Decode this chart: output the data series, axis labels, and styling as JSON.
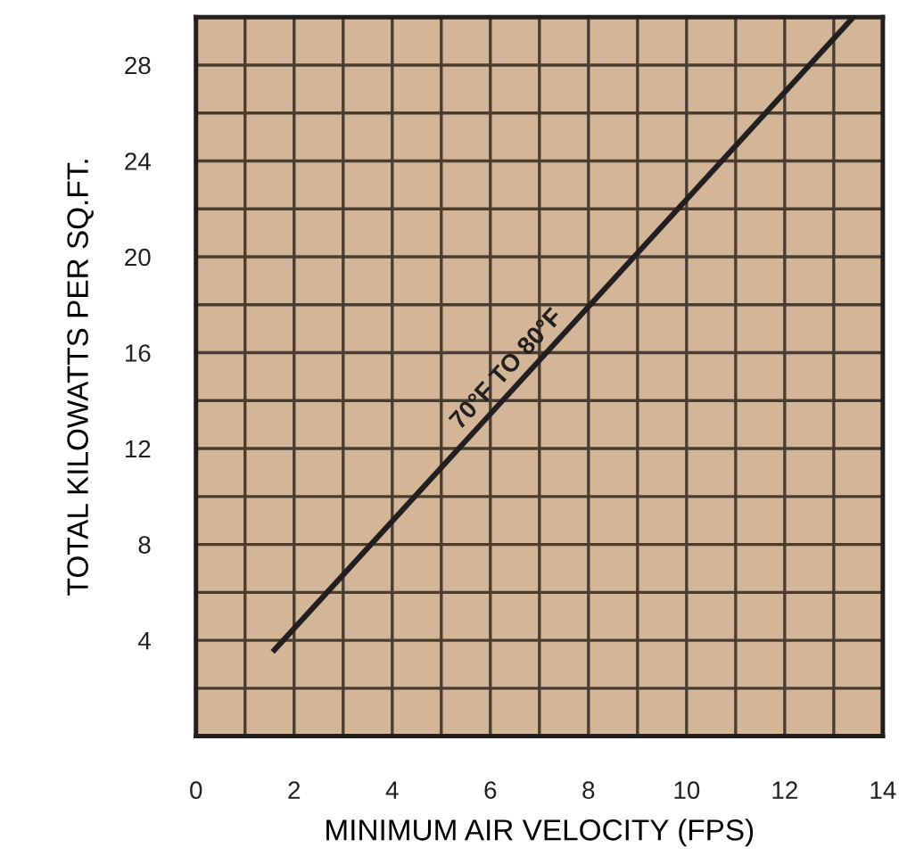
{
  "chart_data": {
    "type": "line",
    "xlabel": "MINIMUM AIR VELOCITY (FPS)",
    "ylabel": "TOTAL KILOWATTS PER SQ.FT.",
    "x": [
      1.6,
      13.4
    ],
    "series": [
      {
        "color": "#231f20",
        "values": [
          3.6,
          30
        ]
      }
    ],
    "xlim": [
      0,
      14
    ],
    "ylim": [
      0,
      30
    ],
    "xticks": [
      0,
      2,
      4,
      6,
      8,
      10,
      12,
      14
    ],
    "yticks": [
      4,
      8,
      12,
      16,
      20,
      24,
      28
    ],
    "grid": true,
    "marker": "none",
    "line_style": "solid",
    "annotations": [
      {
        "text": "70°F TO 80°F",
        "x": 6.6,
        "y": 14.8
      }
    ]
  }
}
